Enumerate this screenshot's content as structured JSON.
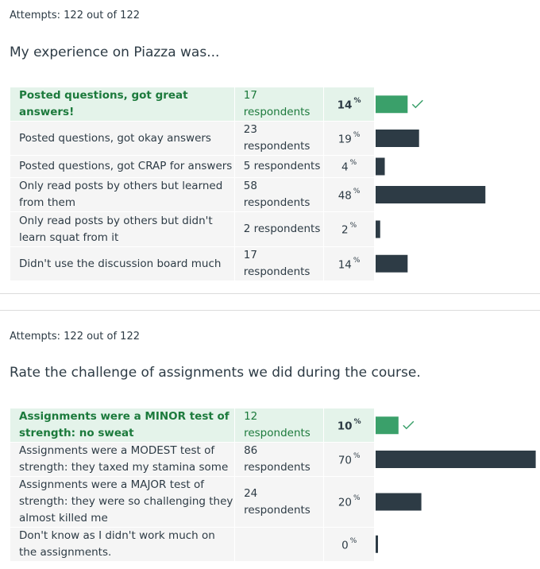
{
  "questions": [
    {
      "attempts": "Attempts: 122 out of 122",
      "text": "My experience on Piazza was...",
      "answers": [
        {
          "label": "Posted questions, got great answers!",
          "respondents": "17 respondents",
          "percent": 14,
          "correct": true
        },
        {
          "label": "Posted questions, got okay answers",
          "respondents": "23 respondents",
          "percent": 19,
          "correct": false
        },
        {
          "label": "Posted questions, got CRAP for answers",
          "respondents": "5 respondents",
          "percent": 4,
          "correct": false
        },
        {
          "label": "Only read posts by others but learned from them",
          "respondents": "58 respondents",
          "percent": 48,
          "correct": false
        },
        {
          "label": "Only read posts by others but didn't learn squat from it",
          "respondents": "2 respondents",
          "percent": 2,
          "correct": false
        },
        {
          "label": "Didn't use the discussion board much",
          "respondents": "17 respondents",
          "percent": 14,
          "correct": false
        }
      ]
    },
    {
      "attempts": "Attempts: 122 out of 122",
      "text": "Rate the challenge of assignments we did during the course.",
      "answers": [
        {
          "label": "Assignments were a MINOR test of strength: no sweat",
          "respondents": "12 respondents",
          "percent": 10,
          "correct": true
        },
        {
          "label": "Assignments were a MODEST test of strength: they taxed my stamina some",
          "respondents": "86 respondents",
          "percent": 70,
          "correct": false
        },
        {
          "label": "Assignments were a MAJOR test of strength: they were so challenging they almost killed me",
          "respondents": "24 respondents",
          "percent": 20,
          "correct": false
        },
        {
          "label": "Don't know as I didn't work much on the assignments.",
          "respondents": "",
          "percent": 0,
          "correct": false
        }
      ]
    }
  ],
  "percent_sign": "%",
  "colors": {
    "correct_bar": "#3aa06a",
    "bar": "#2d3b45",
    "check": "#3aa06a"
  },
  "icons": {
    "correct": "check-icon"
  }
}
